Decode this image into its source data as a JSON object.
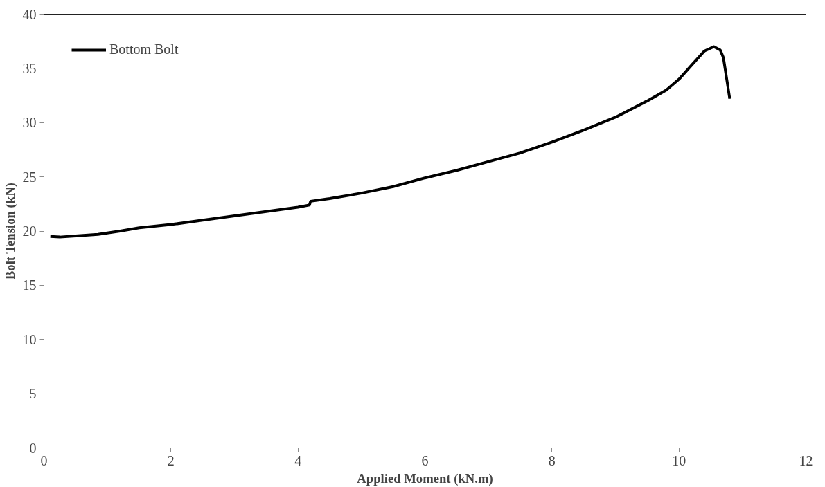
{
  "chart_data": {
    "type": "line",
    "xlabel": "Applied Moment (kN.m)",
    "ylabel": "Bolt Tension (kN)",
    "xlim": [
      0,
      12
    ],
    "xticks": [
      0,
      2,
      4,
      6,
      8,
      10,
      12
    ],
    "ylim": [
      0,
      40
    ],
    "yticks": [
      0,
      5,
      10,
      15,
      20,
      25,
      30,
      35,
      40
    ],
    "grid": false,
    "legend": "top left",
    "marker": "none",
    "line_style": "solid",
    "series": [
      {
        "name": "Bottom Bolt",
        "color": "#000000",
        "x": [
          0.1,
          0.25,
          0.5,
          0.85,
          1.2,
          1.5,
          2,
          2.5,
          3,
          3.5,
          4.0,
          4.18,
          4.2,
          4.5,
          5,
          5.5,
          6,
          6.5,
          7,
          7.5,
          8,
          8.5,
          9,
          9.5,
          9.8,
          10,
          10.2,
          10.4,
          10.55,
          10.65,
          10.7,
          10.8
        ],
        "values": [
          19.5,
          19.45,
          19.55,
          19.7,
          20.0,
          20.3,
          20.6,
          21.0,
          21.4,
          21.8,
          22.2,
          22.4,
          22.75,
          23.0,
          23.5,
          24.1,
          24.9,
          25.6,
          26.4,
          27.2,
          28.2,
          29.3,
          30.5,
          32.0,
          33.0,
          34.0,
          35.3,
          36.6,
          37.0,
          36.7,
          36.0,
          32.2
        ]
      }
    ]
  }
}
